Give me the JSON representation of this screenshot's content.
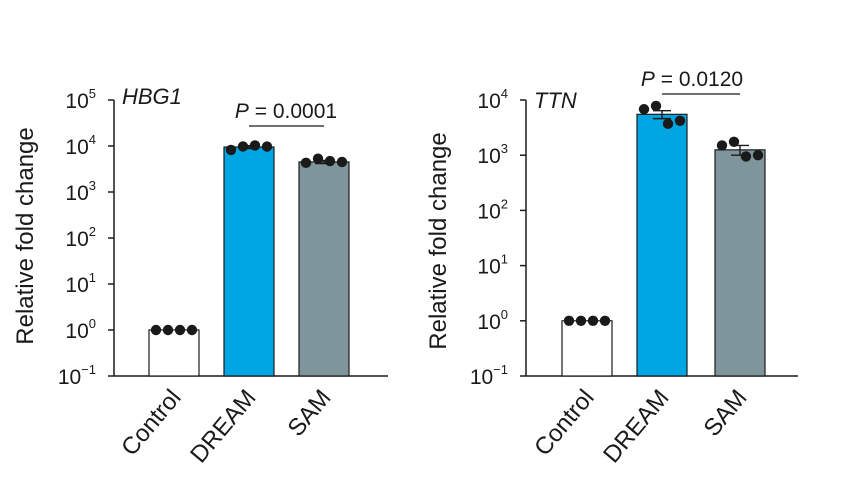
{
  "chart_data": [
    {
      "type": "bar",
      "title": "HBG1",
      "ylabel": "Relative fold change",
      "yscale": "log",
      "ylim": [
        0.1,
        100000
      ],
      "yticks": [
        {
          "base": "10",
          "exp": "−1",
          "value": 0.1
        },
        {
          "base": "10",
          "exp": "0",
          "value": 1
        },
        {
          "base": "10",
          "exp": "1",
          "value": 10
        },
        {
          "base": "10",
          "exp": "2",
          "value": 100
        },
        {
          "base": "10",
          "exp": "3",
          "value": 1000
        },
        {
          "base": "10",
          "exp": "4",
          "value": 10000
        },
        {
          "base": "10",
          "exp": "5",
          "value": 100000
        }
      ],
      "categories": [
        "Control",
        "DREAM",
        "SAM"
      ],
      "values": [
        1,
        9500,
        4500
      ],
      "colors": [
        "#ffffff",
        "#00a5e3",
        "#7f959c"
      ],
      "error": [
        0,
        700,
        350
      ],
      "points": [
        [
          1,
          1,
          1,
          1
        ],
        [
          8200,
          9800,
          10300,
          9700
        ],
        [
          4300,
          5300,
          4700,
          4500
        ]
      ],
      "annotation": {
        "prefix": "P",
        "text": " = 0.0001",
        "from": "DREAM",
        "to": "SAM"
      }
    },
    {
      "type": "bar",
      "title": "TTN",
      "ylabel": "Relative fold change",
      "yscale": "log",
      "ylim": [
        0.1,
        10000
      ],
      "yticks": [
        {
          "base": "10",
          "exp": "−1",
          "value": 0.1
        },
        {
          "base": "10",
          "exp": "0",
          "value": 1
        },
        {
          "base": "10",
          "exp": "1",
          "value": 10
        },
        {
          "base": "10",
          "exp": "2",
          "value": 100
        },
        {
          "base": "10",
          "exp": "3",
          "value": 1000
        },
        {
          "base": "10",
          "exp": "4",
          "value": 10000
        }
      ],
      "categories": [
        "Control",
        "DREAM",
        "SAM"
      ],
      "values": [
        1,
        5500,
        1250
      ],
      "colors": [
        "#ffffff",
        "#00a5e3",
        "#7f959c"
      ],
      "error": [
        0,
        900,
        250
      ],
      "points": [
        [
          1,
          1,
          1,
          1
        ],
        [
          6800,
          7800,
          3700,
          4200
        ],
        [
          1500,
          1750,
          950,
          1000
        ]
      ],
      "annotation": {
        "prefix": "P",
        "text": " = 0.0120",
        "from": "DREAM",
        "to": "SAM"
      }
    }
  ]
}
